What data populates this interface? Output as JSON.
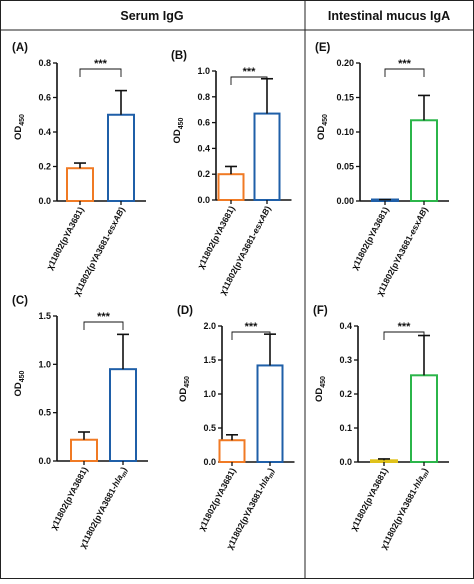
{
  "headers": {
    "left": "Serum IgG",
    "right": "Intestinal mucus IgA"
  },
  "ylabel_main": "OD",
  "ylabel_sub": "450",
  "chart_data": [
    {
      "panel": "(A)",
      "type": "bar",
      "ylim": [
        0,
        0.8
      ],
      "yticks": [
        "0.0",
        "0.2",
        "0.4",
        "0.6",
        "0.8"
      ],
      "categories": [
        {
          "main": "χ11802(pYA3681)",
          "italic": "",
          "tail": ""
        },
        {
          "main": "χ11802(pYA3681-",
          "italic": "esxAB",
          "tail": ")"
        }
      ],
      "values": [
        0.19,
        0.5
      ],
      "errors": [
        0.03,
        0.14
      ],
      "colors": [
        "#f07a24",
        "#1f5fa8"
      ],
      "significance": "***"
    },
    {
      "panel": "(B)",
      "type": "bar",
      "ylim": [
        0,
        1.0
      ],
      "yticks": [
        "0.0",
        "0.2",
        "0.4",
        "0.6",
        "0.8",
        "1.0"
      ],
      "categories": [
        {
          "main": "χ11802(pYA3681)",
          "italic": "",
          "tail": ""
        },
        {
          "main": "χ11802(pYA3681-",
          "italic": "esxAB",
          "tail": ")"
        }
      ],
      "values": [
        0.2,
        0.67
      ],
      "errors": [
        0.06,
        0.27
      ],
      "colors": [
        "#f07a24",
        "#1f5fa8"
      ],
      "significance": "***"
    },
    {
      "panel": "(E)",
      "type": "bar",
      "ylim": [
        0,
        0.2
      ],
      "yticks": [
        "0.00",
        "0.05",
        "0.10",
        "0.15",
        "0.20"
      ],
      "categories": [
        {
          "main": "χ11802(pYA3681)",
          "italic": "",
          "tail": ""
        },
        {
          "main": "χ11802(pYA3681-",
          "italic": "esxAB",
          "tail": ")"
        }
      ],
      "values": [
        0.001,
        0.117
      ],
      "errors": [
        0.001,
        0.036
      ],
      "colors": [
        "#1f5fa8",
        "#2bb54a"
      ],
      "significance": "***"
    },
    {
      "panel": "(C)",
      "type": "bar",
      "ylim": [
        0,
        1.5
      ],
      "yticks": [
        "0.0",
        "0.5",
        "1.0",
        "1.5"
      ],
      "categories": [
        {
          "main": "χ11802(pYA3681)",
          "italic": "",
          "tail": ""
        },
        {
          "main": "χ11802(pYA3681-",
          "italic": "hla",
          "sub": "m",
          "tail": ")"
        }
      ],
      "values": [
        0.22,
        0.95
      ],
      "errors": [
        0.08,
        0.36
      ],
      "colors": [
        "#f07a24",
        "#1f5fa8"
      ],
      "significance": "***"
    },
    {
      "panel": "(D)",
      "type": "bar",
      "ylim": [
        0,
        2.0
      ],
      "yticks": [
        "0.0",
        "0.5",
        "1.0",
        "1.5",
        "2.0"
      ],
      "categories": [
        {
          "main": "χ11802(pYA3681)",
          "italic": "",
          "tail": ""
        },
        {
          "main": "χ11802(pYA3681-",
          "italic": "hla",
          "sub": "m",
          "tail": ")"
        }
      ],
      "values": [
        0.32,
        1.42
      ],
      "errors": [
        0.08,
        0.46
      ],
      "colors": [
        "#f07a24",
        "#1f5fa8"
      ],
      "significance": "***"
    },
    {
      "panel": "(F)",
      "type": "bar",
      "ylim": [
        0,
        0.4
      ],
      "yticks": [
        "0.0",
        "0.1",
        "0.2",
        "0.3",
        "0.4"
      ],
      "categories": [
        {
          "main": "χ11802(pYA3681)",
          "italic": "",
          "tail": ""
        },
        {
          "main": "χ11802(pYA3681-",
          "italic": "hla",
          "sub": "m",
          "tail": ")"
        }
      ],
      "values": [
        0.005,
        0.255
      ],
      "errors": [
        0.004,
        0.117
      ],
      "colors": [
        "#e0c21a",
        "#2bb54a"
      ],
      "significance": "***"
    }
  ]
}
